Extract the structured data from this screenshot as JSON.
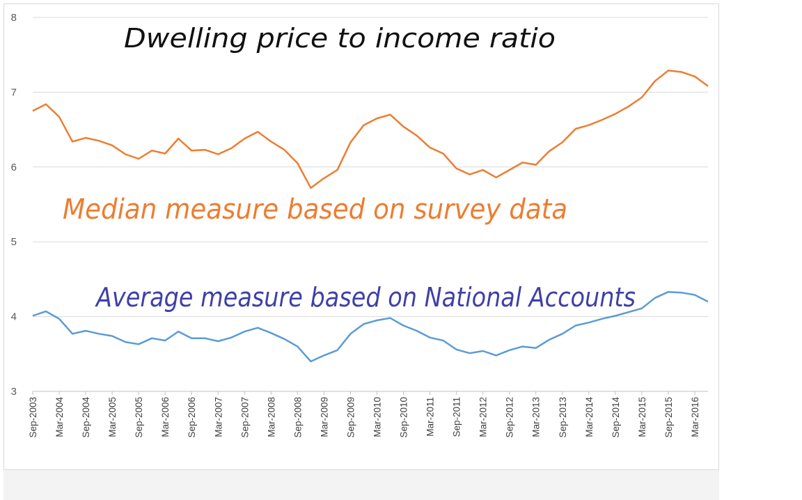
{
  "chart_data": {
    "type": "line",
    "title": "Dwelling price to income ratio",
    "ylim": [
      3,
      8
    ],
    "yticks": [
      3,
      4,
      5,
      6,
      7,
      8
    ],
    "grid": true,
    "x": [
      "Sep-2003",
      "Dec-2003",
      "Mar-2004",
      "Jun-2004",
      "Sep-2004",
      "Dec-2004",
      "Mar-2005",
      "Jun-2005",
      "Sep-2005",
      "Dec-2005",
      "Mar-2006",
      "Jun-2006",
      "Sep-2006",
      "Dec-2006",
      "Mar-2007",
      "Jun-2007",
      "Sep-2007",
      "Dec-2007",
      "Mar-2008",
      "Jun-2008",
      "Sep-2008",
      "Dec-2008",
      "Mar-2009",
      "Jun-2009",
      "Sep-2009",
      "Dec-2009",
      "Mar-2010",
      "Jun-2010",
      "Sep-2010",
      "Dec-2010",
      "Mar-2011",
      "Jun-2011",
      "Sep-2011",
      "Dec-2011",
      "Mar-2012",
      "Jun-2012",
      "Sep-2012",
      "Dec-2012",
      "Mar-2013",
      "Jun-2013",
      "Sep-2013",
      "Dec-2013",
      "Mar-2014",
      "Jun-2014",
      "Sep-2014",
      "Dec-2014",
      "Mar-2015",
      "Jun-2015",
      "Sep-2015",
      "Dec-2015",
      "Mar-2016",
      "Jun-2016"
    ],
    "tick_labels": [
      "Sep-2003",
      "Mar-2004",
      "Sep-2004",
      "Mar-2005",
      "Sep-2005",
      "Mar-2006",
      "Sep-2006",
      "Mar-2007",
      "Sep-2007",
      "Mar-2008",
      "Sep-2008",
      "Mar-2009",
      "Sep-2009",
      "Mar-2010",
      "Sep-2010",
      "Mar-2011",
      "Sep-2011",
      "Mar-2012",
      "Sep-2012",
      "Mar-2013",
      "Sep-2013",
      "Mar-2014",
      "Sep-2014",
      "Mar-2015",
      "Sep-2015",
      "Mar-2016"
    ],
    "series": [
      {
        "name": "Median measure based on survey data",
        "color": "#ED7D31",
        "values": [
          6.75,
          6.84,
          6.67,
          6.34,
          6.39,
          6.35,
          6.29,
          6.17,
          6.11,
          6.22,
          6.18,
          6.38,
          6.22,
          6.23,
          6.17,
          6.25,
          6.38,
          6.47,
          6.34,
          6.23,
          6.05,
          5.72,
          5.85,
          5.96,
          6.33,
          6.56,
          6.65,
          6.7,
          6.54,
          6.42,
          6.26,
          6.18,
          5.98,
          5.9,
          5.96,
          5.86,
          5.96,
          6.06,
          6.03,
          6.21,
          6.33,
          6.51,
          6.56,
          6.63,
          6.71,
          6.81,
          6.93,
          7.15,
          7.29,
          7.27,
          7.21,
          7.08
        ]
      },
      {
        "name": "Average measure based on National Accounts",
        "color": "#5B9BD5",
        "values": [
          4.01,
          4.07,
          3.97,
          3.77,
          3.81,
          3.77,
          3.74,
          3.66,
          3.63,
          3.71,
          3.68,
          3.8,
          3.71,
          3.71,
          3.67,
          3.72,
          3.8,
          3.85,
          3.78,
          3.7,
          3.6,
          3.4,
          3.48,
          3.55,
          3.77,
          3.9,
          3.95,
          3.98,
          3.88,
          3.81,
          3.72,
          3.68,
          3.56,
          3.51,
          3.54,
          3.48,
          3.55,
          3.6,
          3.58,
          3.69,
          3.77,
          3.88,
          3.92,
          3.97,
          4.01,
          4.06,
          4.11,
          4.25,
          4.33,
          4.32,
          4.29,
          4.2
        ]
      }
    ]
  },
  "annotations": {
    "title": "Dwelling price to income ratio",
    "median_label": "Median measure based on survey data",
    "average_label": "Average measure based on National Accounts"
  }
}
